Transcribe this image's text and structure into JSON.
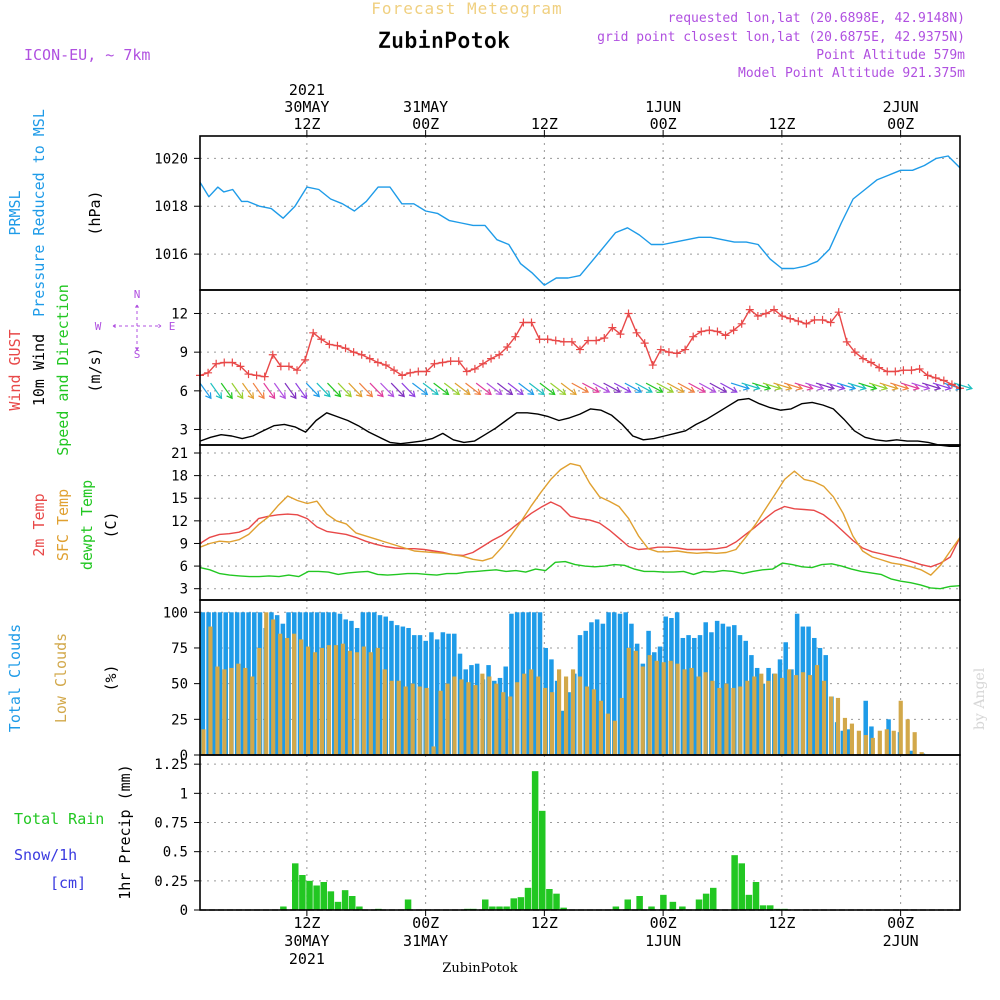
{
  "header": {
    "title_top": "Forecast Meteogram",
    "location": "ZubinPotok",
    "model": "ICON-EU, ~ 7km",
    "requested": "requested lon,lat (20.6898E, 42.9148N)",
    "closest": "grid point closest lon,lat (20.6875E, 42.9375N)",
    "altitude": "Point Altitude 579m",
    "model_altitude": "Model Point Altitude 921.375m",
    "footer_location": "ZubinPotok",
    "credit": "by Angel"
  },
  "time_axis": {
    "start_hour": 0,
    "end_hour": 64,
    "top_ticks": [
      {
        "hour": 9,
        "lines": [
          "2021",
          "30MAY",
          "12Z"
        ]
      },
      {
        "hour": 19,
        "lines": [
          "31MAY",
          "00Z"
        ]
      },
      {
        "hour": 29,
        "lines": [
          "12Z"
        ]
      },
      {
        "hour": 39,
        "lines": [
          "1JUN",
          "00Z"
        ]
      },
      {
        "hour": 49,
        "lines": [
          "12Z"
        ]
      },
      {
        "hour": 59,
        "lines": [
          "2JUN",
          "00Z"
        ]
      }
    ],
    "bottom_ticks": [
      {
        "hour": 9,
        "lines": [
          "12Z",
          "30MAY",
          "2021"
        ]
      },
      {
        "hour": 19,
        "lines": [
          "00Z",
          "31MAY"
        ]
      },
      {
        "hour": 29,
        "lines": [
          "12Z"
        ]
      },
      {
        "hour": 39,
        "lines": [
          "00Z",
          "1JUN"
        ]
      },
      {
        "hour": 49,
        "lines": [
          "12Z"
        ]
      },
      {
        "hour": 59,
        "lines": [
          "00Z",
          "2JUN"
        ]
      }
    ]
  },
  "colors": {
    "pressure": "#1e9be8",
    "gust": "#e84848",
    "wind_speed": "#000000",
    "wind_dir_label": "#22c722",
    "t2m": "#e84848",
    "sfc": "#e0a030",
    "dewpt": "#22c722",
    "total_clouds": "#1e9be8",
    "low_clouds": "#d2a84a",
    "rain": "#22c722",
    "snow": "#3a3ae0",
    "compass": "#b050e0",
    "header": "#b050e0",
    "title_top": "#f0d080"
  },
  "chart_data": [
    {
      "type": "line",
      "panel": "pressure",
      "ylabel_lines": [
        "PRMSL",
        "Pressure Reduced to MSL"
      ],
      "unit": "(hPa)",
      "yticks": [
        1016,
        1018,
        1020
      ],
      "ylim": [
        1014.5,
        1020.6
      ],
      "grid": true,
      "series": [
        {
          "name": "PRMSL",
          "x": [
            0,
            0.75,
            1.5,
            2,
            2.75,
            3.5,
            4,
            5,
            6,
            7,
            8,
            9,
            10,
            11,
            12,
            13,
            14,
            15,
            16,
            17,
            18,
            19,
            20,
            21,
            22,
            23,
            24,
            25,
            26,
            27,
            28,
            29,
            30,
            31,
            32,
            33,
            34,
            35,
            36,
            37,
            38,
            39,
            40,
            41,
            42,
            43,
            44,
            45,
            46,
            47,
            48,
            49,
            50,
            51,
            52,
            53,
            54,
            55,
            56,
            57,
            58,
            59,
            60,
            61,
            62,
            63,
            64
          ],
          "values": [
            1019.0,
            1018.4,
            1018.8,
            1018.6,
            1018.7,
            1018.2,
            1018.2,
            1018.0,
            1017.9,
            1017.5,
            1018.0,
            1018.8,
            1018.7,
            1018.3,
            1018.1,
            1017.8,
            1018.2,
            1018.8,
            1018.8,
            1018.1,
            1018.1,
            1017.8,
            1017.7,
            1017.4,
            1017.3,
            1017.2,
            1017.2,
            1016.6,
            1016.4,
            1015.6,
            1015.2,
            1014.7,
            1015.0,
            1015.0,
            1015.1,
            1015.7,
            1016.3,
            1016.9,
            1017.1,
            1016.8,
            1016.4,
            1016.4,
            1016.5,
            1016.6,
            1016.7,
            1016.7,
            1016.6,
            1016.5,
            1016.5,
            1016.4,
            1015.8,
            1015.4,
            1015.4,
            1015.5,
            1015.7,
            1016.2,
            1017.3,
            1018.3,
            1018.7,
            1019.1,
            1019.3,
            1019.5,
            1019.5,
            1019.7,
            1020.0,
            1020.1,
            1019.6
          ]
        }
      ]
    },
    {
      "type": "line",
      "panel": "wind",
      "ylabel_lines": [
        "Wind GUST",
        "10m Wind",
        "Speed and Direction"
      ],
      "unit": "(m/s)",
      "compass": [
        "N",
        "E",
        "S",
        "W"
      ],
      "yticks": [
        3,
        6,
        9,
        12
      ],
      "ylim": [
        1.8,
        13.2
      ],
      "grid": true,
      "gust": [
        7.2,
        7.4,
        8.1,
        8.2,
        8.2,
        7.9,
        7.3,
        7.2,
        7.1,
        8.8,
        7.9,
        7.9,
        7.6,
        8.4,
        10.5,
        10.0,
        9.6,
        9.5,
        9.3,
        9.0,
        8.8,
        8.5,
        8.2,
        8.0,
        7.6,
        7.2,
        7.4,
        7.5,
        7.5,
        8.1,
        8.2,
        8.3,
        8.3,
        7.5,
        7.7,
        8.1,
        8.5,
        8.8,
        9.4,
        10.2,
        11.3,
        11.3,
        10.0,
        10.0,
        9.9,
        9.8,
        9.8,
        9.2,
        9.9,
        9.9,
        10.1,
        10.9,
        10.4,
        12.0,
        10.5,
        9.7,
        8.0,
        9.2,
        9.0,
        8.9,
        9.2,
        10.2,
        10.6,
        10.7,
        10.6,
        10.3,
        10.7,
        11.2,
        12.3,
        11.8,
        12.0,
        12.3,
        11.8,
        11.6,
        11.4,
        11.2,
        11.5,
        11.5,
        11.3,
        12.1,
        9.8,
        9.0,
        8.5,
        8.2,
        7.8,
        7.5,
        7.5,
        7.6,
        7.6,
        7.7,
        7.2,
        7.0,
        6.8,
        6.5,
        6.2
      ],
      "speed": [
        2.1,
        2.4,
        2.6,
        2.5,
        2.3,
        2.5,
        2.9,
        3.3,
        3.4,
        3.2,
        2.8,
        3.7,
        4.3,
        4.0,
        3.7,
        3.3,
        2.8,
        2.4,
        2.0,
        1.9,
        2.0,
        2.1,
        2.3,
        2.7,
        2.2,
        2.0,
        2.1,
        2.6,
        3.1,
        3.7,
        4.3,
        4.3,
        4.2,
        4.0,
        3.7,
        3.9,
        4.2,
        4.6,
        4.5,
        4.1,
        3.4,
        2.5,
        2.2,
        2.3,
        2.5,
        2.7,
        2.9,
        3.4,
        3.8,
        4.3,
        4.8,
        5.3,
        5.4,
        5.0,
        4.7,
        4.5,
        4.6,
        5.0,
        5.1,
        4.9,
        4.6,
        3.8,
        2.9,
        2.4,
        2.2,
        2.1,
        2.2,
        2.1,
        2.1,
        2.0,
        1.8,
        1.7,
        1.7
      ],
      "arrow_count": 72,
      "arrow_colors": [
        "#1e9be8",
        "#1ec0c0",
        "#22c722",
        "#98d030",
        "#e0a030",
        "#f08040",
        "#e03c9c",
        "#b050e0",
        "#8030c0",
        "#9040e0"
      ]
    },
    {
      "type": "line",
      "panel": "temperature",
      "ylabel_lines": [
        "2m Temp",
        "SFC Temp",
        "dewpt Temp"
      ],
      "unit": "(C)",
      "yticks": [
        3,
        6,
        9,
        12,
        15,
        18,
        21
      ],
      "ylim": [
        1.5,
        21
      ],
      "grid": true,
      "series": [
        {
          "name": "2m Temp",
          "values": [
            9.0,
            9.8,
            10.2,
            10.3,
            10.5,
            11.0,
            12.3,
            12.6,
            12.8,
            12.9,
            12.8,
            12.3,
            11.2,
            10.6,
            10.4,
            10.2,
            9.8,
            9.3,
            8.9,
            8.6,
            8.4,
            8.3,
            8.3,
            8.2,
            8.0,
            7.8,
            7.5,
            7.4,
            7.8,
            8.6,
            9.4,
            10.1,
            11.0,
            12.0,
            13.0,
            13.8,
            14.5,
            13.9,
            12.6,
            12.3,
            12.1,
            11.7,
            10.8,
            9.7,
            8.6,
            8.2,
            8.3,
            8.5,
            8.5,
            8.4,
            8.2,
            8.2,
            8.2,
            8.3,
            8.5,
            9.2,
            10.2,
            11.2,
            12.3,
            13.3,
            13.9,
            13.6,
            13.5,
            13.4,
            12.8,
            11.8,
            10.6,
            9.4,
            8.4,
            7.9,
            7.6,
            7.3,
            7.0,
            6.6,
            6.2,
            5.9,
            6.4,
            7.2,
            9.8
          ]
        },
        {
          "name": "SFC Temp",
          "values": [
            8.5,
            9.0,
            9.3,
            9.2,
            9.5,
            10.2,
            11.5,
            12.5,
            14.0,
            15.3,
            14.7,
            14.3,
            14.6,
            12.9,
            12.0,
            11.6,
            10.4,
            10.0,
            9.6,
            9.2,
            8.8,
            8.4,
            8.0,
            7.9,
            7.8,
            7.7,
            7.5,
            7.3,
            6.9,
            6.7,
            7.1,
            8.5,
            10.2,
            12.0,
            14.0,
            15.8,
            17.5,
            18.8,
            19.6,
            19.3,
            17.0,
            15.2,
            14.6,
            13.9,
            12.3,
            10.0,
            8.3,
            7.9,
            7.9,
            8.0,
            7.8,
            7.7,
            7.8,
            7.7,
            7.8,
            8.2,
            9.8,
            11.5,
            13.5,
            15.5,
            17.5,
            18.6,
            17.5,
            17.2,
            16.6,
            15.2,
            13.0,
            10.0,
            8.0,
            7.2,
            6.8,
            6.4,
            6.2,
            5.9,
            5.5,
            4.8,
            6.1,
            8.0,
            9.8
          ]
        },
        {
          "name": "dewpt Temp",
          "values": [
            5.8,
            5.5,
            5.0,
            4.8,
            4.7,
            4.6,
            4.6,
            4.7,
            4.6,
            4.8,
            4.6,
            5.3,
            5.3,
            5.2,
            4.9,
            5.1,
            5.2,
            5.3,
            4.9,
            4.8,
            4.9,
            5.0,
            5.0,
            4.9,
            4.8,
            5.0,
            5.0,
            5.2,
            5.3,
            5.4,
            5.5,
            5.3,
            5.4,
            5.2,
            5.6,
            5.4,
            6.5,
            6.6,
            6.2,
            6.0,
            5.9,
            6.0,
            6.2,
            6.1,
            5.6,
            5.3,
            5.3,
            5.2,
            5.2,
            5.3,
            4.9,
            5.3,
            5.2,
            5.4,
            5.3,
            5.0,
            5.3,
            5.5,
            5.6,
            6.4,
            6.2,
            5.9,
            5.8,
            6.2,
            6.3,
            6.0,
            5.6,
            5.3,
            5.1,
            4.9,
            4.3,
            4.0,
            3.8,
            3.5,
            3.1,
            3.0,
            3.3,
            3.4
          ]
        }
      ]
    },
    {
      "type": "bar",
      "panel": "clouds",
      "ylabel_lines": [
        "Total Clouds",
        "Low Clouds"
      ],
      "unit": "(%)",
      "yticks": [
        0,
        25,
        50,
        75,
        100
      ],
      "ylim": [
        0,
        103
      ],
      "grid": true,
      "series": [
        {
          "name": "Total Clouds",
          "values": [
            100,
            100,
            100,
            100,
            100,
            100,
            100,
            100,
            100,
            100,
            100,
            89,
            100,
            98,
            92,
            100,
            100,
            100,
            100,
            100,
            100,
            100,
            100,
            100,
            99,
            95,
            94,
            89,
            100,
            100,
            100,
            98,
            97,
            94,
            91,
            90,
            89,
            84,
            84,
            80,
            86,
            81,
            86,
            85,
            85,
            71,
            60,
            63,
            64,
            53,
            63,
            52,
            54,
            62,
            99,
            100,
            100,
            100,
            100,
            100,
            75,
            67,
            52,
            31,
            44,
            57,
            84,
            87,
            93,
            95,
            92,
            100,
            100,
            99,
            100,
            92,
            78,
            64,
            87,
            72,
            76,
            97,
            96,
            100,
            82,
            84,
            82,
            84,
            93,
            86,
            94,
            92,
            90,
            91,
            84,
            80,
            70,
            61,
            50,
            61,
            57,
            67,
            79,
            60,
            99,
            90,
            90,
            82,
            75,
            70,
            41,
            23,
            17,
            18,
            0,
            0,
            38,
            20,
            0,
            0,
            25,
            0,
            16,
            0,
            3,
            0,
            1,
            0,
            0,
            0,
            0,
            0,
            0
          ],
          "x_end": 64
        },
        {
          "name": "Low Clouds",
          "values": [
            18,
            90,
            62,
            60,
            61,
            64,
            61,
            55,
            75,
            100,
            95,
            85,
            82,
            85,
            81,
            76,
            72,
            75,
            77,
            77,
            78,
            73,
            72,
            76,
            72,
            75,
            60,
            52,
            52,
            48,
            50,
            48,
            47,
            6,
            45,
            50,
            55,
            53,
            51,
            49,
            57,
            55,
            50,
            44,
            41,
            51,
            57,
            60,
            55,
            47,
            44,
            60,
            55,
            60,
            55,
            48,
            46,
            38,
            29,
            24,
            40,
            75,
            73,
            62,
            70,
            66,
            65,
            66,
            64,
            60,
            61,
            55,
            58,
            52,
            47,
            50,
            47,
            48,
            52,
            55,
            57,
            52,
            57,
            54,
            60,
            56,
            58,
            56,
            63,
            52,
            41,
            40,
            26,
            22,
            17,
            14,
            12,
            17,
            18,
            17,
            38,
            25,
            16,
            2,
            0,
            0,
            0,
            0,
            0
          ],
          "x_end": 64
        }
      ]
    },
    {
      "type": "bar",
      "panel": "precip",
      "ylabel_lines": [
        "1hr Precip (mm)"
      ],
      "legend_lines": [
        "Total Rain",
        "Snow/1h",
        "[cm]"
      ],
      "yticks": [
        0,
        0.25,
        0.5,
        0.75,
        1,
        1.25
      ],
      "ytick_labels": [
        "0",
        "0.25",
        "0.5",
        "0.75",
        "1",
        "1.25"
      ],
      "ylim": [
        0,
        1.26
      ],
      "grid": true,
      "series": [
        {
          "name": "Total Rain",
          "x": [
            7,
            8,
            8.6,
            9.2,
            9.8,
            10.4,
            11,
            11.6,
            12.2,
            12.8,
            13.4,
            15,
            17.5,
            22.5,
            23,
            24,
            24.6,
            25.2,
            25.8,
            26.4,
            27,
            27.6,
            28.2,
            28.8,
            29.4,
            30,
            30.6,
            35,
            36,
            37,
            38,
            39,
            39.8,
            40.6,
            42,
            42.6,
            43.2,
            45,
            45.6,
            46.2,
            46.8,
            47.4,
            48,
            48.6,
            49.2
          ],
          "values": [
            0.03,
            0.4,
            0.3,
            0.25,
            0.21,
            0.24,
            0.16,
            0.07,
            0.17,
            0.12,
            0.03,
            0.01,
            0.09,
            0.01,
            0.01,
            0.09,
            0.03,
            0.03,
            0.03,
            0.1,
            0.11,
            0.19,
            1.19,
            0.85,
            0.18,
            0.14,
            0.02,
            0.03,
            0.09,
            0.12,
            0.03,
            0.13,
            0.07,
            0.03,
            0.09,
            0.14,
            0.19,
            0.47,
            0.4,
            0.13,
            0.24,
            0.04,
            0.04,
            0.01,
            0.01
          ]
        }
      ]
    }
  ]
}
